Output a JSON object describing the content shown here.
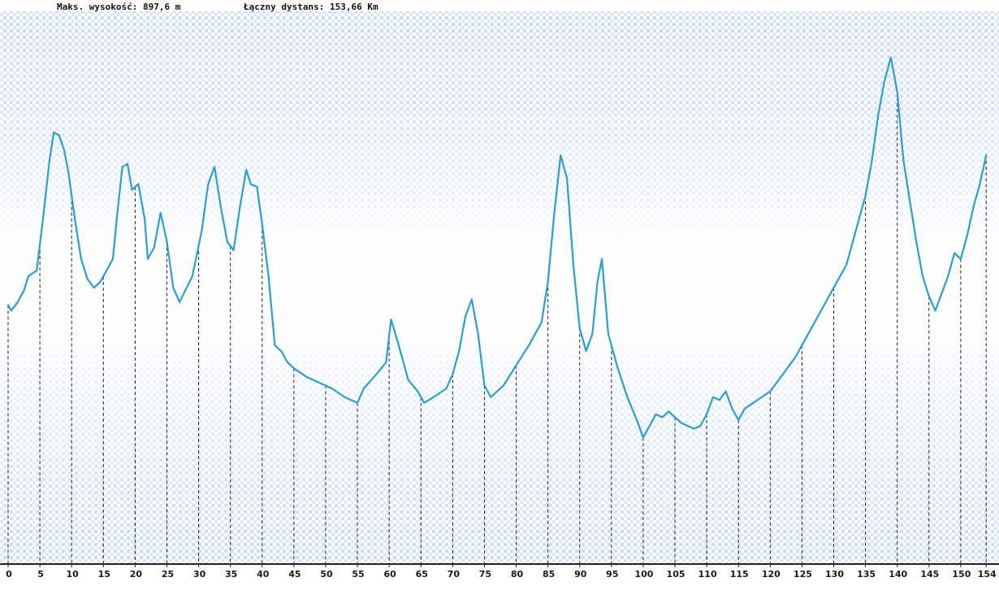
{
  "header": {
    "max_elevation_label": "Maks. wysokość: 897,6 m",
    "total_distance_label": "Łączny dystans: 153,66 Km"
  },
  "colors": {
    "line": "#2a9fd0",
    "grid_light": "#dbe8fb",
    "grid_dark": "#c9dcf7",
    "axis": "#222222",
    "dashed": "#222222",
    "tick_label": "#1a1a1a"
  },
  "chart_data": {
    "type": "line",
    "title": "",
    "xlabel": "",
    "ylabel": "",
    "xlim": [
      0,
      155
    ],
    "ylim": [
      0,
      960
    ],
    "grid": true,
    "x_ticks": [
      0,
      5,
      10,
      15,
      20,
      25,
      30,
      35,
      40,
      45,
      50,
      55,
      60,
      65,
      70,
      75,
      80,
      85,
      90,
      95,
      100,
      105,
      110,
      115,
      120,
      125,
      130,
      135,
      140,
      145,
      150,
      154
    ],
    "x_tick_labels": [
      "0",
      "5",
      "10",
      "15",
      "20",
      "25",
      "30",
      "35",
      "40",
      "45",
      "50",
      "55",
      "60",
      "65",
      "70",
      "75",
      "80",
      "85",
      "90",
      "95",
      "100",
      "105",
      "110",
      "115",
      "120",
      "125",
      "130",
      "135",
      "140",
      "145",
      "150",
      "154"
    ],
    "series": [
      {
        "name": "",
        "x": [
          0,
          0.5,
          1.5,
          2.5,
          3.2,
          4.5,
          5.5,
          6.5,
          7.2,
          8.0,
          8.8,
          9.5,
          10.5,
          11.5,
          12.5,
          13.5,
          14.5,
          15.5,
          16.5,
          17.2,
          18.0,
          18.8,
          19.5,
          20.5,
          21.5,
          22.0,
          23.0,
          24.0,
          25.0,
          26.0,
          27.0,
          29.0,
          30.5,
          31.5,
          32.5,
          33.5,
          34.5,
          35.5,
          36.5,
          37.5,
          38.2,
          39.2,
          40.0,
          41.0,
          42.0,
          43.0,
          44.0,
          45.0,
          47.0,
          49.0,
          51.0,
          53.0,
          55.0,
          56.0,
          58.0,
          59.5,
          60.3,
          61.5,
          63.0,
          64.5,
          65.5,
          67.0,
          69.0,
          70.0,
          71.0,
          72.0,
          73.0,
          74.0,
          75.0,
          76.0,
          78.0,
          80.0,
          82.0,
          83.0,
          84.0,
          85.0,
          86.0,
          87.0,
          88.0,
          89.0,
          90.0,
          91.0,
          92.0,
          92.8,
          93.5,
          94.5,
          96.0,
          97.5,
          99.0,
          100.0,
          101.0,
          102.0,
          103.0,
          104.0,
          105.0,
          106.0,
          107.0,
          108.0,
          109.0,
          110.0,
          111.0,
          112.0,
          113.0,
          114.0,
          115.0,
          116.0,
          118.0,
          120.0,
          122.0,
          124.0,
          126.0,
          128.0,
          130.0,
          132.0,
          133.5,
          135.0,
          136.0,
          137.0,
          138.0,
          139.0,
          140.0,
          141.0,
          142.0,
          143.0,
          144.0,
          145.0,
          146.0,
          147.0,
          148.0,
          149.0,
          150.0,
          151.0,
          152.0,
          153.0,
          154.0
        ],
        "y": [
          450,
          440,
          455,
          475,
          500,
          510,
          600,
          700,
          750,
          745,
          720,
          680,
          600,
          530,
          495,
          480,
          490,
          510,
          530,
          610,
          690,
          695,
          650,
          660,
          600,
          530,
          550,
          610,
          560,
          480,
          455,
          500,
          580,
          660,
          690,
          620,
          560,
          545,
          620,
          685,
          660,
          655,
          590,
          500,
          380,
          370,
          350,
          340,
          325,
          315,
          305,
          290,
          280,
          305,
          330,
          350,
          425,
          380,
          320,
          300,
          280,
          290,
          305,
          330,
          370,
          430,
          460,
          400,
          310,
          290,
          310,
          345,
          380,
          400,
          420,
          490,
          610,
          710,
          670,
          520,
          410,
          370,
          400,
          490,
          530,
          400,
          340,
          290,
          250,
          220,
          240,
          260,
          255,
          265,
          255,
          245,
          240,
          235,
          240,
          260,
          290,
          285,
          300,
          270,
          250,
          270,
          285,
          300,
          330,
          360,
          400,
          440,
          480,
          520,
          580,
          640,
          700,
          780,
          840,
          880,
          820,
          700,
          630,
          560,
          500,
          465,
          440,
          470,
          500,
          540,
          530,
          570,
          620,
          660,
          710
        ]
      }
    ]
  }
}
